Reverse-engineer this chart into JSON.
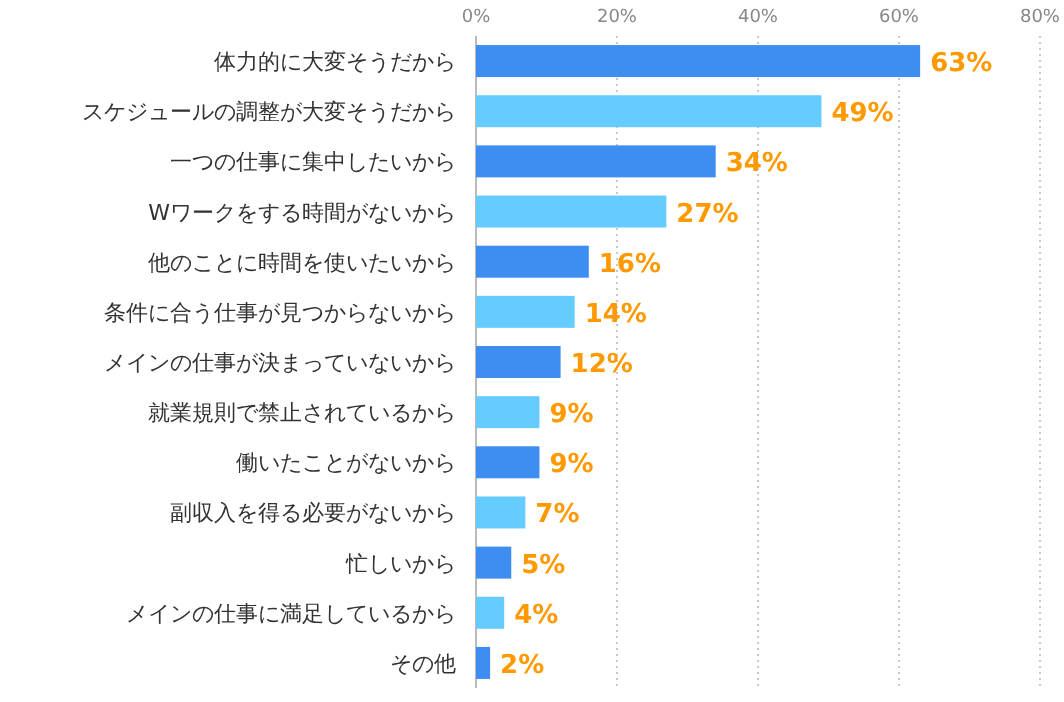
{
  "chart_data": {
    "type": "bar",
    "orientation": "horizontal",
    "categories": [
      "体力的に大変そうだから",
      "スケジュールの調整が大変そうだから",
      "一つの仕事に集中したいから",
      "Wワークをする時間がないから",
      "他のことに時間を使いたいから",
      "条件に合う仕事が見つからないから",
      "メインの仕事が決まっていないから",
      "就業規則で禁止されているから",
      "働いたことがないから",
      "副収入を得る必要がないから",
      "忙しいから",
      "メインの仕事に満足しているから",
      "その他"
    ],
    "values": [
      63,
      49,
      34,
      27,
      16,
      14,
      12,
      9,
      9,
      7,
      5,
      4,
      2
    ],
    "colors": [
      "#3d8ef0",
      "#66ccff",
      "#3d8ef0",
      "#66ccff",
      "#3d8ef0",
      "#66ccff",
      "#3d8ef0",
      "#66ccff",
      "#3d8ef0",
      "#66ccff",
      "#3d8ef0",
      "#66ccff",
      "#3d8ef0"
    ],
    "value_labels": [
      "63%",
      "49%",
      "34%",
      "27%",
      "16%",
      "14%",
      "12%",
      "9%",
      "9%",
      "7%",
      "5%",
      "4%",
      "2%"
    ],
    "xlim": [
      0,
      80
    ],
    "xticks": [
      {
        "value": 0,
        "label": "0%"
      },
      {
        "value": 20,
        "label": "20%"
      },
      {
        "value": 40,
        "label": "40%"
      },
      {
        "value": 60,
        "label": "60%"
      },
      {
        "value": 80,
        "label": "80%"
      }
    ],
    "grid": "x"
  }
}
